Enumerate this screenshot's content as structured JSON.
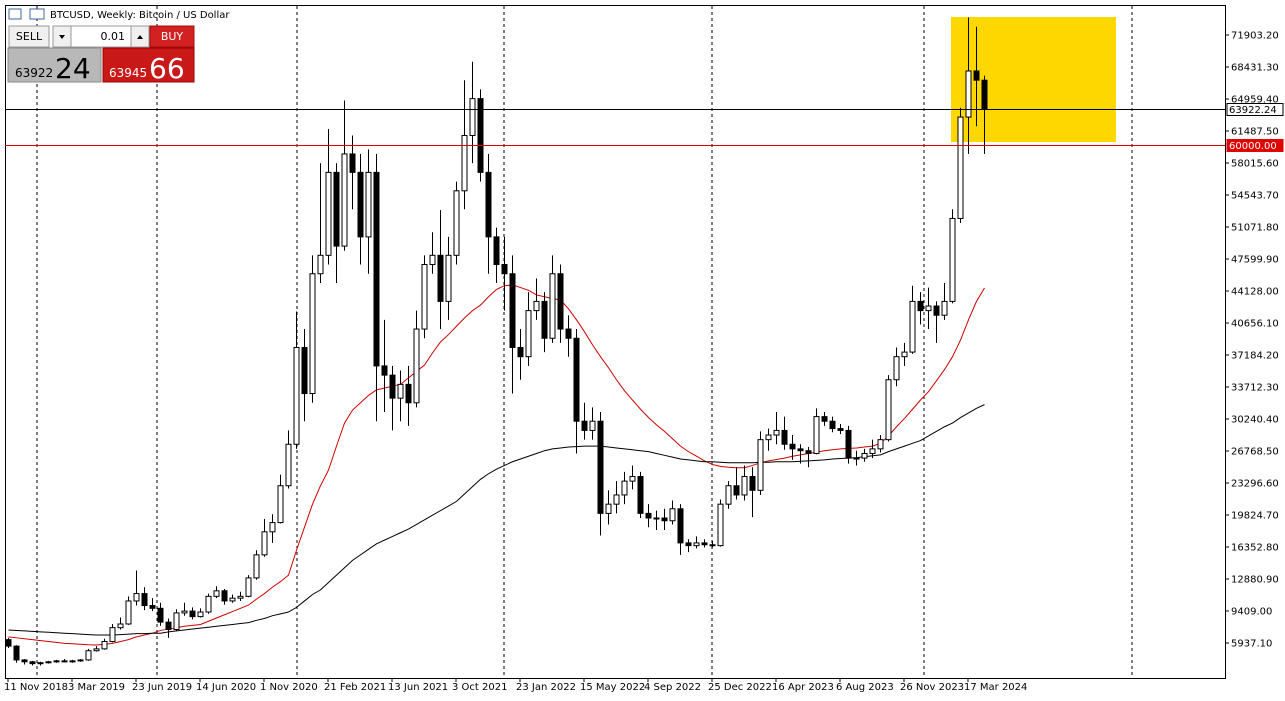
{
  "header": {
    "title": "BTCUSD, Weekly:  Bitcoin / US Dollar"
  },
  "trade_panel": {
    "sell": "SELL",
    "buy": "BUY",
    "volume": "0.01",
    "bid_main": "63922",
    "bid_big": "24",
    "ask_main": "63945",
    "ask_big": "66"
  },
  "chart_data": {
    "type": "candlestick",
    "ylim": [
      2140,
      75158
    ],
    "yticks": [
      {
        "value": 71903.2,
        "label": "71903.20"
      },
      {
        "value": 68431.3,
        "label": "68431.30"
      },
      {
        "value": 64959.4,
        "label": "64959.40"
      },
      {
        "value": 61487.5,
        "label": "61487.50"
      },
      {
        "value": 58015.6,
        "label": "58015.60"
      },
      {
        "value": 54543.7,
        "label": "54543.70"
      },
      {
        "value": 51071.8,
        "label": "51071.80"
      },
      {
        "value": 47599.9,
        "label": "47599.90"
      },
      {
        "value": 44128,
        "label": "44128.00"
      },
      {
        "value": 40656.1,
        "label": "40656.10"
      },
      {
        "value": 37184.2,
        "label": "37184.20"
      },
      {
        "value": 33712.3,
        "label": "33712.30"
      },
      {
        "value": 30240.4,
        "label": "30240.40"
      },
      {
        "value": 26768.5,
        "label": "26768.50"
      },
      {
        "value": 23296.6,
        "label": "23296.60"
      },
      {
        "value": 19824.7,
        "label": "19824.70"
      },
      {
        "value": 16352.8,
        "label": "16352.80"
      },
      {
        "value": 12880.9,
        "label": "12880.90"
      },
      {
        "value": 9409,
        "label": "9409.00"
      },
      {
        "value": 5937.1,
        "label": "5937.10"
      }
    ],
    "categories": [
      "11 Nov 2018",
      null,
      null,
      null,
      null,
      null,
      null,
      null,
      "3 Mar 2019",
      null,
      null,
      null,
      null,
      null,
      null,
      null,
      "23 Jun 2019",
      null,
      null,
      null,
      null,
      null,
      null,
      null,
      "14 Jun 2020",
      null,
      null,
      null,
      null,
      null,
      null,
      null,
      "1 Nov 2020",
      null,
      null,
      null,
      null,
      null,
      null,
      null,
      "21 Feb 2021",
      null,
      null,
      null,
      null,
      null,
      null,
      null,
      "13 Jun 2021",
      null,
      null,
      null,
      null,
      null,
      null,
      null,
      "3 Oct 2021",
      null,
      null,
      null,
      null,
      null,
      null,
      null,
      "23 Jan 2022",
      null,
      null,
      null,
      null,
      null,
      null,
      null,
      "15 May 2022",
      null,
      null,
      null,
      null,
      null,
      null,
      null,
      "4 Sep 2022",
      null,
      null,
      null,
      null,
      null,
      null,
      null,
      "25 Dec 2022",
      null,
      null,
      null,
      null,
      null,
      null,
      null,
      "16 Apr 2023",
      null,
      null,
      null,
      null,
      null,
      null,
      null,
      "6 Aug 2023",
      null,
      null,
      null,
      null,
      null,
      null,
      null,
      "26 Nov 2023",
      null,
      null,
      null,
      null,
      null,
      null,
      null,
      "17 Mar 2024",
      null,
      null
    ],
    "open": [
      6300,
      5600,
      4100,
      3900,
      3700,
      3800,
      3900,
      4000,
      3950,
      4000,
      4100,
      5100,
      5300,
      6100,
      7600,
      8000,
      10500,
      11300,
      10000,
      9700,
      8200,
      7400,
      9200,
      9400,
      8800,
      9300,
      11000,
      11600,
      10500,
      10800,
      11000,
      13000,
      15500,
      18000,
      19000,
      23000,
      27500,
      38000,
      33000,
      46000,
      48000,
      57000,
      49000,
      59000,
      57000,
      50000,
      57000,
      36000,
      35000,
      32500,
      34000,
      32000,
      40000,
      47000,
      48000,
      43000,
      48000,
      55000,
      61000,
      65000,
      57000,
      50000,
      47000,
      46000,
      38000,
      37000,
      42000,
      43000,
      39000,
      46000,
      40000,
      39000,
      30000,
      29000,
      30000,
      20000,
      21000,
      22000,
      23500,
      24000,
      20000,
      19500,
      19500,
      19200,
      20500,
      16800,
      16500,
      16800,
      16600,
      16500,
      21000,
      23000,
      22000,
      24000,
      22500,
      28000,
      28500,
      29000,
      27500,
      27000,
      26800,
      26500,
      30500,
      30000,
      29200,
      29000,
      26000,
      26000,
      26500,
      27000,
      28000,
      34500,
      37000,
      37500,
      43000,
      42000,
      42500,
      41500,
      43000,
      52000,
      63000,
      68000,
      67000
    ],
    "high": [
      6500,
      5700,
      4200,
      4000,
      3900,
      4000,
      4100,
      4200,
      4100,
      4200,
      5300,
      5600,
      6400,
      8000,
      8700,
      11000,
      13800,
      12000,
      10800,
      10300,
      8600,
      9600,
      10300,
      9800,
      9700,
      11300,
      12100,
      11800,
      11200,
      11500,
      13300,
      16000,
      19400,
      19900,
      24200,
      29000,
      41900,
      40000,
      48000,
      58000,
      61700,
      58000,
      64800,
      61000,
      59000,
      59500,
      59000,
      41000,
      36000,
      35500,
      36000,
      42000,
      48000,
      50500,
      52900,
      50000,
      56000,
      67000,
      69000,
      66000,
      59000,
      51000,
      50000,
      48000,
      40000,
      44000,
      45500,
      44000,
      48000,
      47000,
      41500,
      40000,
      32000,
      31500,
      31000,
      22500,
      23500,
      24500,
      25200,
      24500,
      21000,
      20300,
      20500,
      21400,
      21000,
      17200,
      17500,
      17200,
      17000,
      21500,
      23500,
      25000,
      25200,
      25000,
      28900,
      29200,
      31000,
      30500,
      28500,
      27500,
      27200,
      31400,
      31000,
      30500,
      29700,
      29500,
      26800,
      27000,
      28000,
      28500,
      35000,
      38000,
      38500,
      44700,
      44000,
      44500,
      43000,
      45000,
      53000,
      64000,
      73800,
      72800,
      67500
    ],
    "low": [
      5400,
      3800,
      3600,
      3500,
      3500,
      3700,
      3800,
      3850,
      3800,
      3900,
      4000,
      5000,
      5200,
      6000,
      7400,
      7900,
      10000,
      9500,
      9400,
      7800,
      6500,
      7200,
      8900,
      8500,
      8700,
      9100,
      10800,
      10100,
      10300,
      10500,
      10900,
      12800,
      15300,
      16800,
      18900,
      22700,
      27000,
      30000,
      32000,
      45000,
      47000,
      45000,
      48500,
      53000,
      47000,
      46000,
      30000,
      31000,
      29000,
      30000,
      29500,
      31500,
      39000,
      46000,
      40000,
      41000,
      47000,
      53000,
      58000,
      56000,
      46000,
      45000,
      42000,
      33000,
      34500,
      36000,
      41000,
      37500,
      38500,
      38500,
      37000,
      26500,
      28000,
      28000,
      17600,
      18800,
      20000,
      21000,
      22600,
      19500,
      18500,
      18200,
      18200,
      18800,
      15500,
      15800,
      16200,
      16300,
      16300,
      16400,
      20500,
      21500,
      21400,
      19600,
      22000,
      26800,
      27500,
      26900,
      25800,
      25400,
      25000,
      26400,
      29500,
      28800,
      28600,
      25400,
      25200,
      25600,
      26000,
      26600,
      27800,
      33800,
      36000,
      37300,
      40500,
      40000,
      38500,
      41000,
      42800,
      51500,
      59000,
      62000,
      59000
    ],
    "close": [
      5600,
      4100,
      3900,
      3700,
      3800,
      3900,
      4000,
      3950,
      4000,
      4100,
      5100,
      5300,
      6100,
      7600,
      8000,
      10500,
      11300,
      10000,
      9700,
      8200,
      7400,
      9200,
      9400,
      8800,
      9300,
      11000,
      11600,
      10500,
      10800,
      11000,
      13000,
      15500,
      18000,
      19000,
      23000,
      27500,
      38000,
      33000,
      46000,
      48000,
      57000,
      49000,
      59000,
      57000,
      50000,
      57000,
      36000,
      35000,
      32500,
      34000,
      32000,
      40000,
      47000,
      48000,
      43000,
      48000,
      55000,
      61000,
      65000,
      57000,
      50000,
      47000,
      46000,
      38000,
      37000,
      42000,
      43000,
      39000,
      46000,
      40000,
      39000,
      30000,
      29000,
      30000,
      20000,
      21000,
      22000,
      23500,
      24000,
      20000,
      19500,
      19500,
      19200,
      20500,
      16800,
      16500,
      16800,
      16600,
      16500,
      21000,
      23000,
      22000,
      24000,
      22500,
      28000,
      28500,
      29000,
      27500,
      27000,
      26800,
      26500,
      30500,
      30000,
      29200,
      29000,
      26000,
      26000,
      26500,
      27000,
      28000,
      34500,
      37000,
      37500,
      43000,
      42000,
      42500,
      41500,
      43000,
      52000,
      63000,
      68000,
      67000,
      63922
    ],
    "overlays": [
      {
        "color": "#d00000",
        "values": [
          6600,
          6500,
          6400,
          6300,
          6200,
          6100,
          6000,
          5900,
          5850,
          5800,
          5750,
          5720,
          5800,
          5900,
          6100,
          6300,
          6600,
          6800,
          7000,
          7300,
          7450,
          7600,
          7750,
          7850,
          7950,
          8300,
          8650,
          9000,
          9350,
          9700,
          10050,
          10700,
          11300,
          12000,
          12600,
          13300,
          16000,
          18500,
          21000,
          23000,
          24700,
          27300,
          29800,
          31200,
          32000,
          32800,
          33400,
          33600,
          33800,
          34000,
          34700,
          35400,
          36100,
          37400,
          38600,
          39400,
          40300,
          41200,
          42000,
          42600,
          43500,
          44300,
          44700,
          44800,
          44500,
          44200,
          43700,
          43500,
          43300,
          43150,
          42200,
          41000,
          39700,
          38300,
          37000,
          35800,
          34500,
          33300,
          32300,
          31300,
          30400,
          29600,
          28900,
          28100,
          27300,
          26700,
          26200,
          25700,
          25300,
          25100,
          25000,
          24950,
          24950,
          25200,
          25500,
          25700,
          25850,
          26000,
          26200,
          26350,
          26500,
          26650,
          26800,
          26900,
          27000,
          27050,
          27100,
          27200,
          27300,
          27600,
          28400,
          29400,
          30300,
          31300,
          32300,
          33200,
          34400,
          35600,
          37000,
          38800,
          41000,
          43000,
          44450
        ]
      },
      {
        "color": "#000000",
        "values": [
          7350,
          7300,
          7250,
          7200,
          7150,
          7100,
          7050,
          7000,
          6950,
          6900,
          6850,
          6800,
          6800,
          6800,
          6850,
          6900,
          6950,
          6950,
          7000,
          7000,
          7150,
          7250,
          7350,
          7450,
          7550,
          7650,
          7750,
          7850,
          7950,
          8050,
          8150,
          8400,
          8600,
          8900,
          9100,
          9300,
          9800,
          10500,
          11200,
          11700,
          12500,
          13300,
          14100,
          14900,
          15500,
          16100,
          16700,
          17100,
          17500,
          17900,
          18300,
          18800,
          19300,
          19800,
          20300,
          20800,
          21300,
          22100,
          22900,
          23700,
          24300,
          24800,
          25200,
          25600,
          25900,
          26200,
          26500,
          26800,
          27000,
          27100,
          27200,
          27250,
          27300,
          27300,
          27300,
          27200,
          27100,
          27000,
          26900,
          26800,
          26700,
          26500,
          26300,
          26100,
          25900,
          25800,
          25700,
          25600,
          25600,
          25550,
          25500,
          25500,
          25500,
          25500,
          25550,
          25550,
          25600,
          25600,
          25600,
          25650,
          25700,
          25750,
          25800,
          25900,
          25950,
          26000,
          26050,
          26150,
          26250,
          26350,
          26700,
          27000,
          27300,
          27600,
          27900,
          28400,
          28900,
          29400,
          29800,
          30400,
          30900,
          31400,
          31800
        ]
      }
    ],
    "hlines": [
      {
        "value": 63922.24,
        "label": "63922.24",
        "color": "#000000"
      },
      {
        "value": 60000,
        "label": "60000.00",
        "color": "#e00000"
      }
    ]
  }
}
